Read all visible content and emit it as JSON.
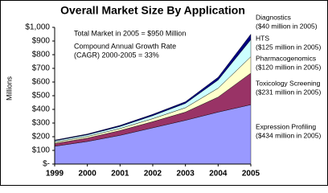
{
  "chart_data": {
    "type": "stacked_area",
    "title": "Overall Market Size By Application",
    "y_label": "Millions",
    "annotations": [
      "Total Market in 2005 = $950 Million",
      "Compound Annual Growth Rate",
      "(CAGR) 2000-2005 = 33%"
    ],
    "categories": [
      "1999",
      "2000",
      "2001",
      "2002",
      "2003",
      "2004",
      "2005"
    ],
    "series": [
      {
        "name": "Expression Profiling",
        "note": "($434 million in 2005)",
        "color": "#9999ff",
        "values": [
          130,
          165,
          210,
          265,
          320,
          380,
          434
        ]
      },
      {
        "name": "Toxicology Screening",
        "note": "($231 million in 2005)",
        "color": "#993366",
        "values": [
          20,
          25,
          35,
          45,
          60,
          110,
          231
        ]
      },
      {
        "name": "Pharmacogenomics",
        "note": "($120 million in 2005)",
        "color": "#ffffcc",
        "values": [
          10,
          12,
          15,
          22,
          32,
          65,
          120
        ]
      },
      {
        "name": "HTS",
        "note": "($125 million in 2005)",
        "color": "#ccffff",
        "values": [
          10,
          12,
          15,
          22,
          32,
          60,
          125
        ]
      },
      {
        "name": "Diagnostics",
        "note": "($40 million in 2005)",
        "color": "#000080",
        "values": [
          5,
          6,
          8,
          10,
          12,
          20,
          40
        ]
      }
    ],
    "ylim": [
      0,
      1000
    ],
    "yticks": [
      {
        "value": 0,
        "label": "$-"
      },
      {
        "value": 100,
        "label": "$100"
      },
      {
        "value": 200,
        "label": "$200"
      },
      {
        "value": 300,
        "label": "$300"
      },
      {
        "value": 400,
        "label": "$400"
      },
      {
        "value": 500,
        "label": "$500"
      },
      {
        "value": 600,
        "label": "$600"
      },
      {
        "value": 700,
        "label": "$700"
      },
      {
        "value": 800,
        "label": "$800"
      },
      {
        "value": 900,
        "label": "$900"
      },
      {
        "value": 1000,
        "label": "$1,000"
      }
    ]
  }
}
